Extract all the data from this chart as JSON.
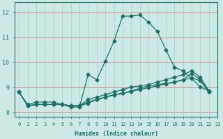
{
  "xlabel": "Humidex (Indice chaleur)",
  "ylabel": "",
  "xlim": [
    -0.5,
    23
  ],
  "ylim": [
    7.8,
    12.4
  ],
  "bg_color": "#cce9e5",
  "grid_color": "#aad4cf",
  "line_color": "#1a7068",
  "xticks": [
    0,
    1,
    2,
    3,
    4,
    5,
    6,
    7,
    8,
    9,
    10,
    11,
    12,
    13,
    14,
    15,
    16,
    17,
    18,
    19,
    20,
    21,
    22,
    23
  ],
  "yticks": [
    8,
    9,
    10,
    11,
    12
  ],
  "series": [
    [
      8.8,
      8.3,
      8.4,
      8.4,
      8.4,
      8.3,
      8.2,
      8.2,
      9.5,
      9.3,
      10.05,
      10.85,
      11.85,
      11.85,
      11.9,
      11.6,
      11.25,
      10.5,
      9.8,
      9.65,
      9.35,
      9.0,
      8.85
    ],
    [
      8.8,
      8.25,
      8.3,
      8.3,
      8.3,
      8.3,
      8.25,
      8.25,
      8.35,
      8.5,
      8.6,
      8.7,
      8.75,
      8.85,
      8.95,
      9.05,
      9.1,
      9.15,
      9.2,
      9.3,
      9.55,
      9.3,
      8.8
    ],
    [
      8.8,
      8.25,
      8.3,
      8.3,
      8.3,
      8.3,
      8.25,
      8.25,
      8.5,
      8.6,
      8.7,
      8.8,
      8.9,
      9.0,
      9.05,
      9.1,
      9.2,
      9.3,
      9.4,
      9.5,
      9.65,
      9.4,
      8.85
    ],
    [
      8.8,
      8.25,
      8.3,
      8.3,
      8.3,
      8.3,
      8.25,
      8.25,
      8.4,
      8.5,
      8.6,
      8.68,
      8.75,
      8.82,
      8.9,
      8.97,
      9.05,
      9.13,
      9.2,
      9.28,
      9.38,
      9.25,
      8.8
    ]
  ],
  "marker": "D",
  "marker_size": 2.5,
  "line_width": 0.9
}
